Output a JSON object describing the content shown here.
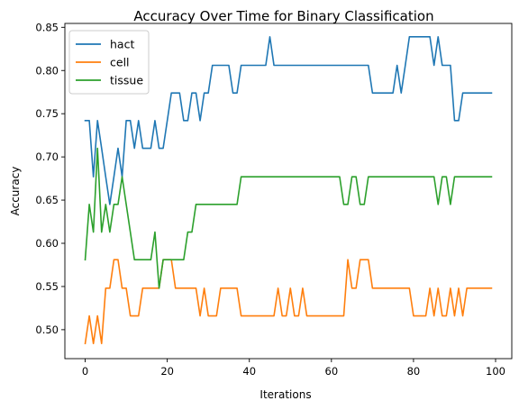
{
  "chart_data": {
    "type": "line",
    "title": "Accuracy Over Time for Binary Classification",
    "xlabel": "Iterations",
    "ylabel": "Accuracy",
    "xlim": [
      -4.95,
      103.95
    ],
    "ylim": [
      0.4665,
      0.8545
    ],
    "xticks": [
      0,
      20,
      40,
      60,
      80,
      100
    ],
    "yticks": [
      0.5,
      0.55,
      0.6,
      0.65,
      0.7,
      0.75,
      0.8,
      0.85
    ],
    "ytick_labels": [
      "0.50",
      "0.55",
      "0.60",
      "0.65",
      "0.70",
      "0.75",
      "0.80",
      "0.85"
    ],
    "grid": false,
    "legend_position": "top-left",
    "series": [
      {
        "name": "hact",
        "color": "#1f77b4",
        "values": [
          0.742,
          0.742,
          0.677,
          0.742,
          0.71,
          0.677,
          0.645,
          0.677,
          0.71,
          0.677,
          0.742,
          0.742,
          0.71,
          0.742,
          0.71,
          0.71,
          0.71,
          0.742,
          0.71,
          0.71,
          0.742,
          0.774,
          0.774,
          0.774,
          0.742,
          0.742,
          0.774,
          0.774,
          0.742,
          0.774,
          0.774,
          0.806,
          0.806,
          0.806,
          0.806,
          0.806,
          0.774,
          0.774,
          0.806,
          0.806,
          0.806,
          0.806,
          0.806,
          0.806,
          0.806,
          0.839,
          0.806,
          0.806,
          0.806,
          0.806,
          0.806,
          0.806,
          0.806,
          0.806,
          0.806,
          0.806,
          0.806,
          0.806,
          0.806,
          0.806,
          0.806,
          0.806,
          0.806,
          0.806,
          0.806,
          0.806,
          0.806,
          0.806,
          0.806,
          0.806,
          0.774,
          0.774,
          0.774,
          0.774,
          0.774,
          0.774,
          0.806,
          0.774,
          0.806,
          0.839,
          0.839,
          0.839,
          0.839,
          0.839,
          0.839,
          0.806,
          0.839,
          0.806,
          0.806,
          0.806,
          0.742,
          0.742,
          0.774,
          0.774,
          0.774,
          0.774,
          0.774,
          0.774,
          0.774,
          0.774
        ]
      },
      {
        "name": "cell",
        "color": "#ff7f0e",
        "values": [
          0.484,
          0.516,
          0.484,
          0.516,
          0.484,
          0.548,
          0.548,
          0.581,
          0.581,
          0.548,
          0.548,
          0.516,
          0.516,
          0.516,
          0.548,
          0.548,
          0.548,
          0.548,
          0.548,
          0.581,
          0.581,
          0.581,
          0.548,
          0.548,
          0.548,
          0.548,
          0.548,
          0.548,
          0.516,
          0.548,
          0.516,
          0.516,
          0.516,
          0.548,
          0.548,
          0.548,
          0.548,
          0.548,
          0.516,
          0.516,
          0.516,
          0.516,
          0.516,
          0.516,
          0.516,
          0.516,
          0.516,
          0.548,
          0.516,
          0.516,
          0.548,
          0.516,
          0.516,
          0.548,
          0.516,
          0.516,
          0.516,
          0.516,
          0.516,
          0.516,
          0.516,
          0.516,
          0.516,
          0.516,
          0.581,
          0.548,
          0.548,
          0.581,
          0.581,
          0.581,
          0.548,
          0.548,
          0.548,
          0.548,
          0.548,
          0.548,
          0.548,
          0.548,
          0.548,
          0.548,
          0.516,
          0.516,
          0.516,
          0.516,
          0.548,
          0.516,
          0.548,
          0.516,
          0.516,
          0.548,
          0.516,
          0.548,
          0.516,
          0.548,
          0.548,
          0.548,
          0.548,
          0.548,
          0.548,
          0.548
        ]
      },
      {
        "name": "tissue",
        "color": "#2ca02c",
        "values": [
          0.581,
          0.645,
          0.613,
          0.71,
          0.613,
          0.645,
          0.613,
          0.645,
          0.645,
          0.677,
          0.645,
          0.613,
          0.581,
          0.581,
          0.581,
          0.581,
          0.581,
          0.613,
          0.548,
          0.581,
          0.581,
          0.581,
          0.581,
          0.581,
          0.581,
          0.613,
          0.613,
          0.645,
          0.645,
          0.645,
          0.645,
          0.645,
          0.645,
          0.645,
          0.645,
          0.645,
          0.645,
          0.645,
          0.677,
          0.677,
          0.677,
          0.677,
          0.677,
          0.677,
          0.677,
          0.677,
          0.677,
          0.677,
          0.677,
          0.677,
          0.677,
          0.677,
          0.677,
          0.677,
          0.677,
          0.677,
          0.677,
          0.677,
          0.677,
          0.677,
          0.677,
          0.677,
          0.677,
          0.645,
          0.645,
          0.677,
          0.677,
          0.645,
          0.645,
          0.677,
          0.677,
          0.677,
          0.677,
          0.677,
          0.677,
          0.677,
          0.677,
          0.677,
          0.677,
          0.677,
          0.677,
          0.677,
          0.677,
          0.677,
          0.677,
          0.677,
          0.645,
          0.677,
          0.677,
          0.645,
          0.677,
          0.677,
          0.677,
          0.677,
          0.677,
          0.677,
          0.677,
          0.677,
          0.677,
          0.677
        ]
      }
    ]
  }
}
